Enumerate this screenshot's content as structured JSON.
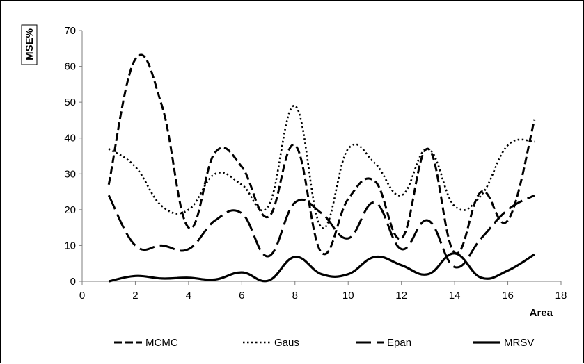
{
  "chart_data": {
    "type": "line",
    "title": "",
    "xlabel": "Area",
    "ylabel": "MSE%",
    "xlim": [
      0,
      18
    ],
    "ylim": [
      0,
      70
    ],
    "x_ticks": [
      "0",
      "2",
      "4",
      "6",
      "8",
      "10",
      "12",
      "14",
      "16",
      "18"
    ],
    "y_ticks": [
      "0",
      "10",
      "20",
      "30",
      "40",
      "50",
      "60",
      "70"
    ],
    "grid": false,
    "legend_position": "bottom",
    "x": [
      1,
      2,
      3,
      4,
      5,
      6,
      7,
      8,
      9,
      10,
      11,
      12,
      13,
      14,
      15,
      16,
      17
    ],
    "series": [
      {
        "name": "MCMC",
        "style": "dashed",
        "values": [
          27,
          62,
          49,
          15,
          36,
          32,
          18,
          38,
          8,
          23,
          28,
          12,
          37,
          8,
          25,
          17,
          45
        ]
      },
      {
        "name": "Gaus",
        "style": "dotted",
        "values": [
          37,
          32,
          21,
          20,
          30,
          27,
          21,
          49,
          15,
          37,
          33,
          24,
          37,
          21,
          24,
          38,
          39
        ]
      },
      {
        "name": "Epan",
        "style": "long-dashed",
        "values": [
          24,
          10,
          10,
          9,
          17,
          19,
          7,
          22,
          19,
          12,
          22,
          9,
          17,
          4,
          12,
          20,
          24
        ]
      },
      {
        "name": "MRSV",
        "style": "solid",
        "values": [
          0,
          1.5,
          0.8,
          1,
          0.5,
          2.5,
          0.2,
          6.8,
          2,
          2,
          6.8,
          4.5,
          2,
          7.8,
          1,
          3,
          7.5
        ]
      }
    ]
  }
}
